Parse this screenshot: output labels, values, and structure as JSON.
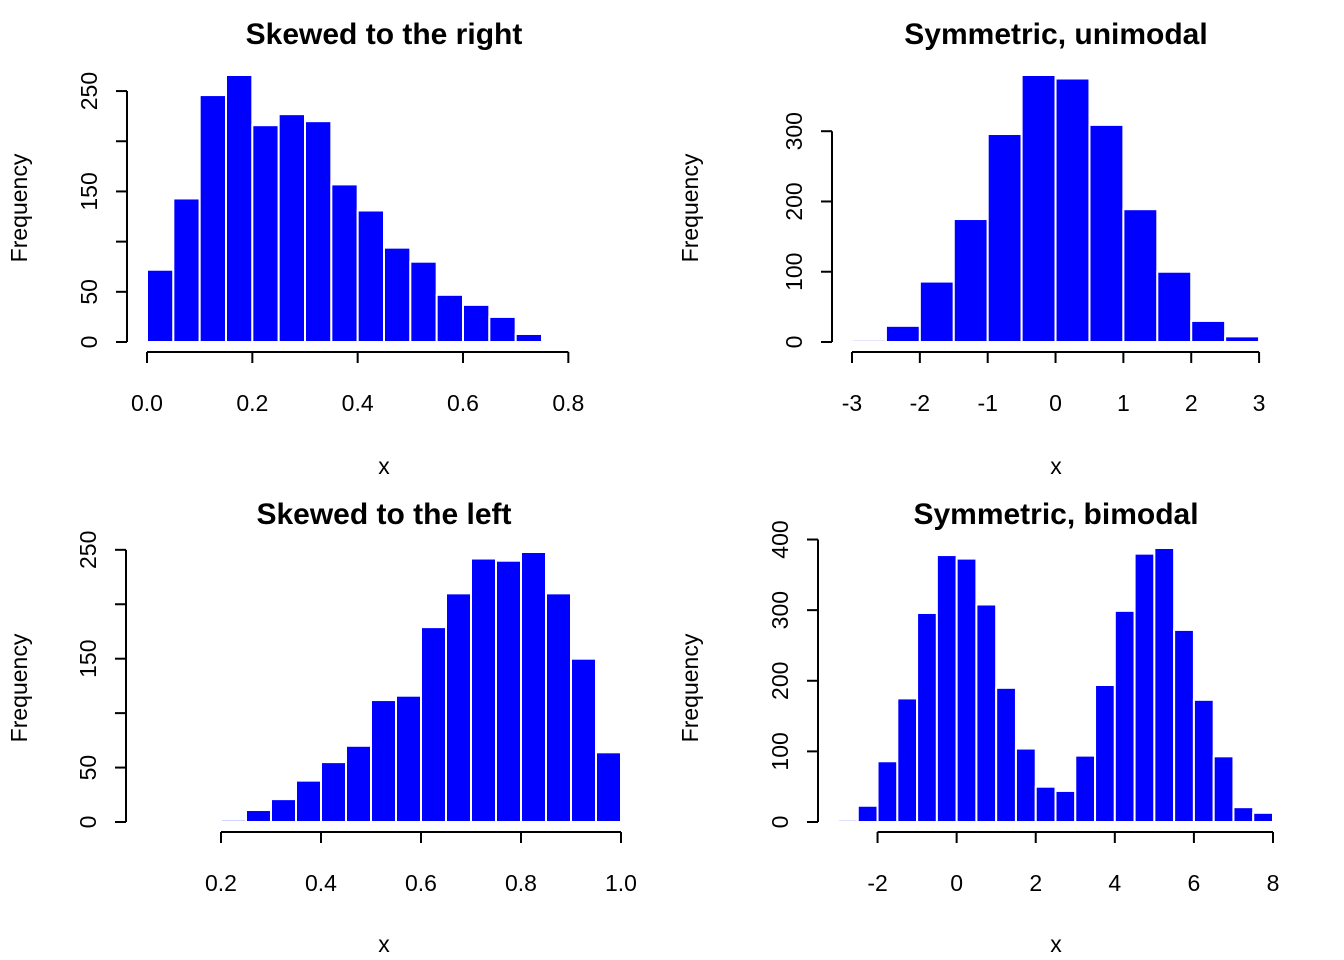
{
  "colors": {
    "bar": "#0000FF",
    "bar_border": "#FFFFFF",
    "axis": "#000000",
    "background": "#FFFFFF"
  },
  "chart_data": [
    {
      "type": "bar",
      "title": "Skewed to the right",
      "xlabel": "x",
      "ylabel": "Frequency",
      "breaks": [
        0.0,
        0.05,
        0.1,
        0.15,
        0.2,
        0.25,
        0.3,
        0.35,
        0.4,
        0.45,
        0.5,
        0.55,
        0.6,
        0.65,
        0.7,
        0.75,
        0.8,
        0.85,
        0.9
      ],
      "values": [
        72,
        143,
        246,
        266,
        216,
        227,
        220,
        157,
        131,
        94,
        80,
        47,
        37,
        25,
        8,
        2,
        1,
        1
      ],
      "xlim": [
        0.0,
        0.9
      ],
      "ylim": [
        0,
        266
      ],
      "xticks": [
        0.0,
        0.2,
        0.4,
        0.6,
        0.8
      ],
      "xtick_labels": [
        "0.0",
        "0.2",
        "0.4",
        "0.6",
        "0.8"
      ],
      "xaxis_range": [
        0.0,
        0.8
      ],
      "yticks": [
        0,
        50,
        100,
        150,
        200,
        250
      ],
      "ytick_labels": [
        "0",
        "50",
        "",
        "150",
        "",
        "250"
      ],
      "grid": false,
      "legend": "none"
    },
    {
      "type": "bar",
      "title": "Symmetric, unimodal",
      "xlabel": "x",
      "ylabel": "Frequency",
      "breaks": [
        -3.0,
        -2.5,
        -2.0,
        -1.5,
        -1.0,
        -0.5,
        0.0,
        0.5,
        1.0,
        1.5,
        2.0,
        2.5,
        3.0,
        3.5
      ],
      "values": [
        3,
        23,
        86,
        175,
        296,
        380,
        375,
        309,
        189,
        100,
        30,
        8,
        2
      ],
      "xlim": [
        -3.0,
        3.5
      ],
      "ylim": [
        0,
        380
      ],
      "xticks": [
        -3,
        -2,
        -1,
        0,
        1,
        2,
        3
      ],
      "xtick_labels": [
        "-3",
        "-2",
        "-1",
        "0",
        "1",
        "2",
        "3"
      ],
      "xaxis_range": [
        -3,
        3
      ],
      "yticks": [
        0,
        100,
        200,
        300
      ],
      "ytick_labels": [
        "0",
        "100",
        "200",
        "300"
      ],
      "grid": false,
      "legend": "none"
    },
    {
      "type": "bar",
      "title": "Skewed to the left",
      "xlabel": "x",
      "ylabel": "Frequency",
      "breaks": [
        0.05,
        0.1,
        0.15,
        0.2,
        0.25,
        0.3,
        0.35,
        0.4,
        0.45,
        0.5,
        0.55,
        0.6,
        0.65,
        0.7,
        0.75,
        0.8,
        0.85,
        0.9,
        0.95,
        1.0
      ],
      "values": [
        1,
        0,
        1,
        2,
        11,
        21,
        38,
        55,
        70,
        112,
        116,
        179,
        210,
        242,
        240,
        248,
        210,
        150,
        64
      ],
      "xlim": [
        0.05,
        1.0
      ],
      "ylim": [
        0,
        248
      ],
      "xticks": [
        0.2,
        0.4,
        0.6,
        0.8,
        1.0
      ],
      "xtick_labels": [
        "0.2",
        "0.4",
        "0.6",
        "0.8",
        "1.0"
      ],
      "xaxis_range": [
        0.2,
        1.0
      ],
      "yticks": [
        0,
        50,
        100,
        150,
        200,
        250
      ],
      "ytick_labels": [
        "0",
        "50",
        "",
        "150",
        "",
        "250"
      ],
      "grid": false,
      "legend": "none"
    },
    {
      "type": "bar",
      "title": "Symmetric, bimodal",
      "xlabel": "x",
      "ylabel": "Frequency",
      "breaks": [
        -3.0,
        -2.5,
        -2.0,
        -1.5,
        -1.0,
        -0.5,
        0.0,
        0.5,
        1.0,
        1.5,
        2.0,
        2.5,
        3.0,
        3.5,
        4.0,
        4.5,
        5.0,
        5.5,
        6.0,
        6.5,
        7.0,
        7.5,
        8.0
      ],
      "values": [
        3,
        23,
        86,
        175,
        296,
        378,
        373,
        308,
        190,
        104,
        50,
        44,
        94,
        194,
        299,
        380,
        388,
        272,
        173,
        93,
        21,
        13
      ],
      "xlim": [
        -3.0,
        8.0
      ],
      "ylim": [
        0,
        388
      ],
      "xticks": [
        -2,
        0,
        2,
        4,
        6,
        8
      ],
      "xtick_labels": [
        "-2",
        "0",
        "2",
        "4",
        "6",
        "8"
      ],
      "xaxis_range": [
        -2,
        8
      ],
      "yticks": [
        0,
        100,
        200,
        300,
        400
      ],
      "ytick_labels": [
        "0",
        "100",
        "200",
        "300",
        "400"
      ],
      "grid": false,
      "legend": "none"
    }
  ]
}
